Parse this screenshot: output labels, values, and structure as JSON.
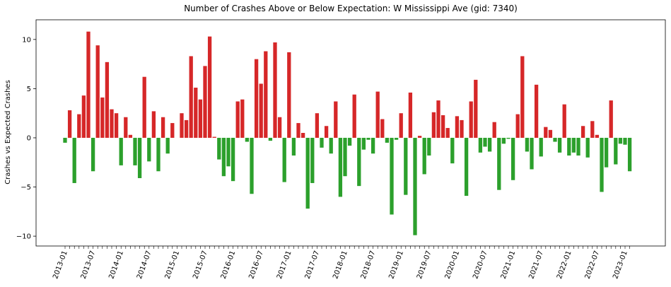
{
  "chart_data": {
    "type": "bar",
    "title": "Number of Crashes Above or Below Expectation: W Mississippi Ave (gid: 7340)",
    "xlabel": "",
    "ylabel": "Crashes vs Expected Crashes",
    "ylim": [
      -11,
      12
    ],
    "yticks": [
      -10,
      -5,
      0,
      5,
      10
    ],
    "grid": false,
    "colors": {
      "positive": "#d62728",
      "negative": "#2ca02c"
    },
    "xtick_labels": [
      "2013-01",
      "2013-07",
      "2014-01",
      "2014-07",
      "2015-01",
      "2015-07",
      "2016-01",
      "2016-07",
      "2017-01",
      "2017-07",
      "2018-01",
      "2018-07",
      "2019-01",
      "2019-07",
      "2020-01",
      "2020-07",
      "2021-01",
      "2021-07",
      "2022-01",
      "2022-07",
      "2023-01"
    ],
    "values": [
      -0.5,
      2.8,
      -4.6,
      2.4,
      4.3,
      10.8,
      -3.4,
      9.4,
      4.1,
      7.7,
      2.9,
      2.5,
      -2.8,
      2.1,
      0.3,
      -2.8,
      -4.1,
      6.2,
      -2.4,
      2.7,
      -3.4,
      2.1,
      -1.6,
      1.5,
      0.0,
      2.5,
      1.8,
      8.3,
      5.1,
      3.9,
      7.3,
      10.3,
      0.1,
      -2.2,
      -3.9,
      -2.9,
      -4.4,
      3.7,
      3.9,
      -0.4,
      -5.7,
      8.0,
      5.5,
      8.8,
      -0.3,
      9.7,
      2.1,
      -4.5,
      8.7,
      -1.8,
      1.5,
      0.5,
      -7.2,
      -4.6,
      2.5,
      -1.0,
      1.2,
      -1.6,
      3.7,
      -6.0,
      -3.9,
      -0.8,
      4.4,
      -4.9,
      -1.2,
      -0.2,
      -1.6,
      4.7,
      1.9,
      -0.5,
      -7.8,
      -0.2,
      2.5,
      -5.8,
      4.6,
      -9.9,
      0.2,
      -3.7,
      -1.8,
      2.6,
      3.8,
      2.3,
      1.0,
      -2.6,
      2.2,
      1.8,
      -5.9,
      3.7,
      5.9,
      -1.5,
      -0.9,
      -1.4,
      1.6,
      -5.3,
      -0.6,
      -0.1,
      -4.3,
      2.4,
      8.3,
      -1.4,
      -3.2,
      5.4,
      -1.9,
      1.1,
      0.8,
      -0.4,
      -1.5,
      3.4,
      -1.8,
      -1.5,
      -1.8,
      1.2,
      -2.0,
      1.7,
      0.3,
      -5.5,
      -3.0,
      3.8,
      -2.7,
      -0.6,
      -0.7,
      -3.4
    ]
  }
}
